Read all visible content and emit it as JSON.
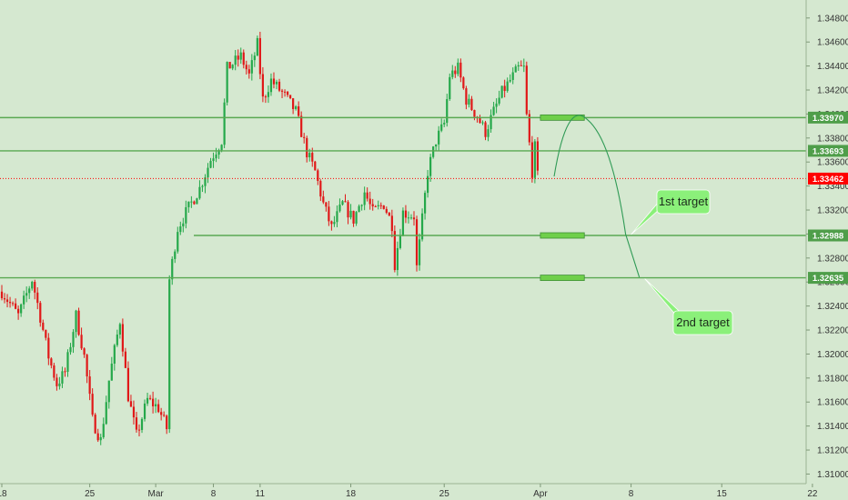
{
  "chart_data": {
    "type": "candlestick",
    "y_ticks": [
      1.31,
      1.312,
      1.314,
      1.316,
      1.318,
      1.32,
      1.322,
      1.324,
      1.326,
      1.328,
      1.33,
      1.332,
      1.334,
      1.336,
      1.338,
      1.34,
      1.342,
      1.344,
      1.346,
      1.348
    ],
    "y_tick_labels": [
      "1.31000",
      "1.31200",
      "1.31400",
      "1.31600",
      "1.31800",
      "1.32000",
      "1.32200",
      "1.32400",
      "1.32600",
      "1.32800",
      "1.33000",
      "1.33200",
      "1.33400",
      "1.33600",
      "1.33800",
      "1.34000",
      "1.34200",
      "1.34400",
      "1.34600",
      "1.34800"
    ],
    "ylim": [
      1.3092,
      1.3495
    ],
    "x_tick_labels": [
      "18",
      "25",
      "Mar",
      "8",
      "11",
      "18",
      "25",
      "Apr",
      "8",
      "15",
      "22"
    ],
    "x_tick_index": [
      0,
      32,
      56,
      77,
      94,
      127,
      161,
      196,
      229,
      262,
      295
    ],
    "bars": 302,
    "levels": [
      {
        "value": 1.3397,
        "label": "1.33970"
      },
      {
        "value": 1.33693,
        "label": "1.33693"
      },
      {
        "value": 1.32988,
        "label": "1.32988"
      },
      {
        "value": 1.32635,
        "label": "1.32635"
      }
    ],
    "current_price": {
      "value": 1.33462,
      "label": "1.33462"
    },
    "anchors": [
      [
        0,
        1.3252
      ],
      [
        6,
        1.3232
      ],
      [
        11,
        1.3262
      ],
      [
        13,
        1.3242
      ],
      [
        17,
        1.3198
      ],
      [
        20,
        1.3175
      ],
      [
        23,
        1.3185
      ],
      [
        27,
        1.3232
      ],
      [
        30,
        1.3198
      ],
      [
        33,
        1.3145
      ],
      [
        36,
        1.3128
      ],
      [
        39,
        1.3178
      ],
      [
        43,
        1.3228
      ],
      [
        46,
        1.3165
      ],
      [
        49,
        1.3132
      ],
      [
        53,
        1.3162
      ],
      [
        57,
        1.3155
      ],
      [
        60,
        1.3138
      ],
      [
        61,
        1.3262
      ],
      [
        64,
        1.3305
      ],
      [
        68,
        1.3322
      ],
      [
        72,
        1.3338
      ],
      [
        76,
        1.3362
      ],
      [
        80,
        1.3378
      ],
      [
        82,
        1.3438
      ],
      [
        87,
        1.3448
      ],
      [
        90,
        1.3432
      ],
      [
        93,
        1.3458
      ],
      [
        95,
        1.3412
      ],
      [
        98,
        1.3428
      ],
      [
        103,
        1.3415
      ],
      [
        107,
        1.3402
      ],
      [
        111,
        1.3368
      ],
      [
        114,
        1.3352
      ],
      [
        117,
        1.3325
      ],
      [
        120,
        1.3305
      ],
      [
        124,
        1.3325
      ],
      [
        128,
        1.3312
      ],
      [
        132,
        1.3335
      ],
      [
        135,
        1.3318
      ],
      [
        139,
        1.3325
      ],
      [
        142,
        1.3308
      ],
      [
        143,
        1.3275
      ],
      [
        146,
        1.3318
      ],
      [
        150,
        1.3315
      ],
      [
        151,
        1.3272
      ],
      [
        155,
        1.3352
      ],
      [
        158,
        1.3378
      ],
      [
        161,
        1.3392
      ],
      [
        163,
        1.3432
      ],
      [
        166,
        1.3438
      ],
      [
        169,
        1.3412
      ],
      [
        173,
        1.3398
      ],
      [
        176,
        1.3385
      ],
      [
        179,
        1.3402
      ],
      [
        182,
        1.3418
      ],
      [
        185,
        1.3428
      ],
      [
        188,
        1.3438
      ],
      [
        190,
        1.3438
      ],
      [
        191,
        1.3398
      ],
      [
        193,
        1.3352
      ],
      [
        194,
        1.3372
      ],
      [
        195,
        1.3348
      ]
    ],
    "projection_points": [
      [
        201,
        1.3348
      ],
      [
        213,
        1.33955
      ],
      [
        222,
        1.3362
      ],
      [
        227,
        1.33
      ],
      [
        232,
        1.3264
      ]
    ],
    "target_zones": [
      {
        "value": 1.3397,
        "from": 196,
        "to": 212
      },
      {
        "value": 1.32988,
        "from": 196,
        "to": 212
      },
      {
        "value": 1.32635,
        "from": 196,
        "to": 212
      }
    ],
    "annotations": [
      {
        "text": "1st target",
        "anchor_bar": 229,
        "anchor_value": 1.32988
      },
      {
        "text": "2nd target",
        "anchor_bar": 234,
        "anchor_value": 1.32635
      }
    ],
    "colors": {
      "background": "#d5e8d0",
      "up": "#25a84a",
      "down": "#e01818",
      "level_line": "#5aa852",
      "label_bg": "#4f9e4a",
      "current_bg": "#ff0000",
      "target_fill": "#6fcf4a",
      "note_fill": "#8bf07a"
    }
  }
}
